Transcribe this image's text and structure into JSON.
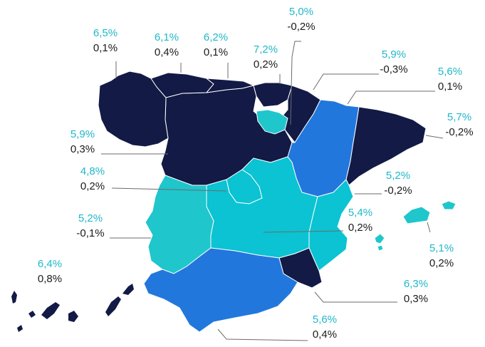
{
  "colors": {
    "navy": "#121a45",
    "blue": "#2277dd",
    "cyan": "#0bc3d2",
    "lightcyan": "#1fc6cc",
    "leader": "#6b6b6b",
    "value_text": "#1fb8c9",
    "delta_text": "#1b1b1b"
  },
  "regions": [
    {
      "name": "galicia",
      "v1": "6,5%",
      "v2": "0,1%"
    },
    {
      "name": "asturias",
      "v1": "6,1%",
      "v2": "0,4%"
    },
    {
      "name": "cantabria",
      "v1": "6,2%",
      "v2": "0,1%"
    },
    {
      "name": "pais-vasco",
      "v1": "7,2%",
      "v2": "0,2%"
    },
    {
      "name": "la-rioja",
      "v1": "5,0%",
      "v2": "-0,2%"
    },
    {
      "name": "navarra",
      "v1": "5,9%",
      "v2": "-0,3%"
    },
    {
      "name": "aragon",
      "v1": "5,6%",
      "v2": "0,1%"
    },
    {
      "name": "cataluna",
      "v1": "5,7%",
      "v2": "-0,2%"
    },
    {
      "name": "castilla-leon",
      "v1": "5,9%",
      "v2": "0,3%"
    },
    {
      "name": "madrid",
      "v1": "4,8%",
      "v2": "0,2%"
    },
    {
      "name": "c-valenciana",
      "v1": "5,2%",
      "v2": "-0,2%"
    },
    {
      "name": "castilla-la-mancha",
      "v1": "5,4%",
      "v2": "0,2%"
    },
    {
      "name": "extremadura",
      "v1": "5,2%",
      "v2": "-0,1%"
    },
    {
      "name": "baleares",
      "v1": "5,1%",
      "v2": "0,2%"
    },
    {
      "name": "canarias",
      "v1": "6,4%",
      "v2": "0,8%"
    },
    {
      "name": "murcia",
      "v1": "6,3%",
      "v2": "0,3%"
    },
    {
      "name": "andalucia",
      "v1": "5,6%",
      "v2": "0,4%"
    }
  ]
}
